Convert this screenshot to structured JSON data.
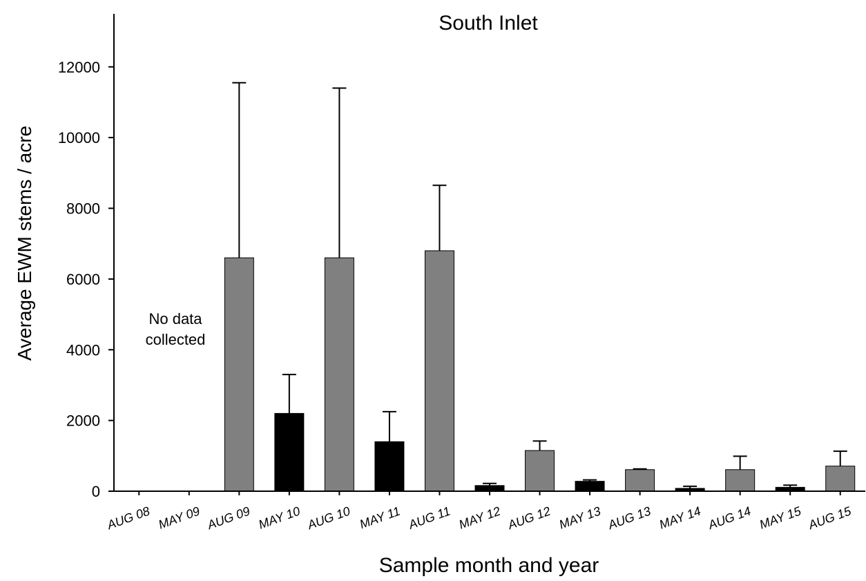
{
  "chart_data": {
    "type": "bar",
    "title": "South Inlet",
    "xlabel": "Sample month and year",
    "ylabel": "Average EWM stems / acre",
    "ylim": [
      0,
      13500
    ],
    "yticks": [
      0,
      2000,
      4000,
      6000,
      8000,
      10000,
      12000
    ],
    "grid": false,
    "categories": [
      "AUG 08",
      "MAY 09",
      "AUG 09",
      "MAY 10",
      "AUG 10",
      "MAY 11",
      "AUG 11",
      "MAY 12",
      "AUG 12",
      "MAY 13",
      "AUG 13",
      "MAY 14",
      "AUG 14",
      "MAY 15",
      "AUG 15"
    ],
    "values": [
      null,
      null,
      6600,
      2200,
      6600,
      1400,
      6800,
      160,
      1150,
      280,
      610,
      80,
      610,
      110,
      710
    ],
    "error_upper": [
      null,
      null,
      11550,
      3300,
      11400,
      2250,
      8650,
      220,
      1420,
      320,
      630,
      140,
      990,
      170,
      1130
    ],
    "bar_colors": [
      "#808080",
      "#000000",
      "#808080",
      "#000000",
      "#808080",
      "#000000",
      "#808080",
      "#000000",
      "#808080",
      "#000000",
      "#808080",
      "#000000",
      "#808080",
      "#000000",
      "#808080"
    ],
    "annotation": "No data\ncollected"
  }
}
